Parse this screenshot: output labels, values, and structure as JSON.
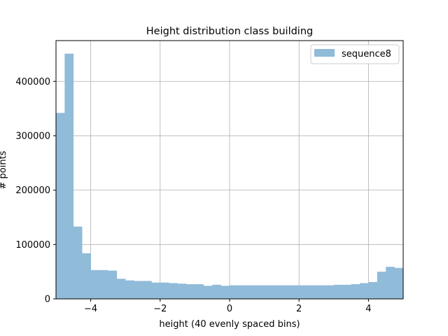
{
  "chart_data": {
    "type": "bar",
    "title": "Height distribution class building",
    "xlabel": "height (40 evenly spaced bins)",
    "ylabel": "# points",
    "xlim": [
      -5,
      5
    ],
    "ylim": [
      0,
      475000
    ],
    "grid": true,
    "legend_position": "top-right",
    "x_ticks": [
      -4,
      -2,
      0,
      2,
      4
    ],
    "x_tick_labels": [
      "−4",
      "−2",
      "0",
      "2",
      "4"
    ],
    "y_ticks": [
      0,
      100000,
      200000,
      300000,
      400000
    ],
    "y_tick_labels": [
      "0",
      "100000",
      "200000",
      "300000",
      "400000"
    ],
    "bin_edges_start": -5,
    "bin_width": 0.25,
    "series": [
      {
        "name": "sequence8",
        "color": "#90bbd9",
        "values": [
          342000,
          451000,
          133000,
          84000,
          53000,
          53000,
          52000,
          37000,
          34000,
          33000,
          33000,
          30000,
          30000,
          29000,
          28000,
          27000,
          27000,
          24000,
          26000,
          24000,
          25000,
          25000,
          25000,
          25000,
          25000,
          25000,
          25000,
          25000,
          25000,
          25000,
          25000,
          25000,
          26000,
          26000,
          27000,
          29000,
          31000,
          50000,
          59000,
          57000
        ]
      }
    ]
  }
}
